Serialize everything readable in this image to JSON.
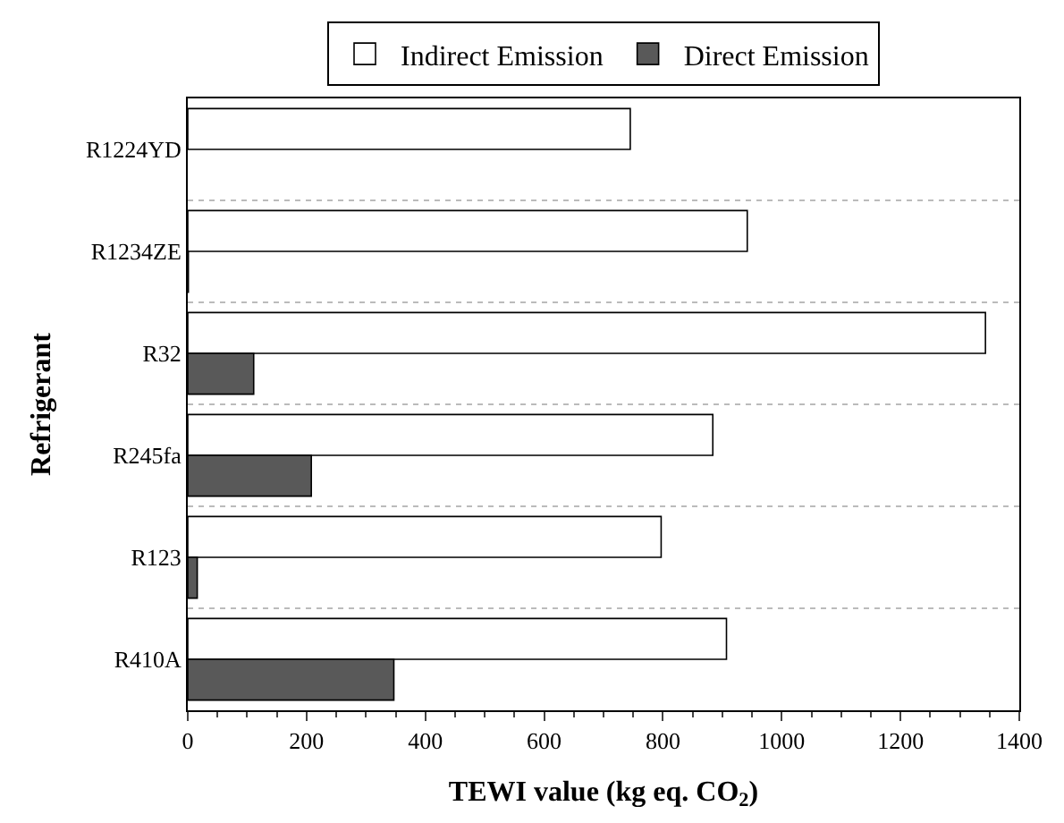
{
  "chart_data": {
    "type": "bar",
    "orientation": "horizontal",
    "xlabel": "TEWI value (kg eq. CO$_{2}$)",
    "ylabel": "Refrigerant",
    "categories": [
      "R1224YD",
      "R1234ZE",
      "R32",
      "R245fa",
      "R123",
      "R410A"
    ],
    "series": [
      {
        "name": "Indirect Emission",
        "color": "#ffffff",
        "values": [
          745,
          942,
          1343,
          884,
          797,
          907
        ]
      },
      {
        "name": "Direct Emission",
        "color": "#595959",
        "values": [
          null,
          1,
          111,
          208,
          16,
          347
        ]
      }
    ],
    "xlim": [
      0,
      1400
    ],
    "xticks": [
      0,
      200,
      400,
      600,
      800,
      1000,
      1200,
      1400
    ],
    "grid": "y",
    "legend": "top"
  }
}
